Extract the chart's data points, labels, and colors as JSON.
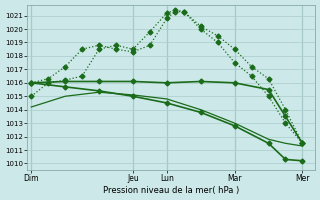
{
  "xlabel": "Pression niveau de la mer( hPa )",
  "bg_color": "#cce8e8",
  "grid_color": "#b0d0d0",
  "line_color": "#1a6b1a",
  "ylim": [
    1009.5,
    1021.8
  ],
  "yticks": [
    1010,
    1011,
    1012,
    1013,
    1014,
    1015,
    1016,
    1017,
    1018,
    1019,
    1020,
    1021
  ],
  "day_labels": [
    "Dim",
    "",
    "Jeu",
    "Lun",
    "",
    "Mar",
    "",
    "Mer"
  ],
  "day_tick_labels": [
    "Dim",
    "Jeu",
    "Lun",
    "Mar",
    "Mer"
  ],
  "day_tick_pos": [
    0,
    12,
    16,
    24,
    32
  ],
  "xlim": [
    -0.5,
    33.5
  ],
  "series1_dotted": {
    "x": [
      0,
      2,
      4,
      6,
      8,
      10,
      12,
      14,
      16,
      17,
      18,
      20,
      22,
      24,
      26,
      28,
      30,
      32
    ],
    "y": [
      1015.0,
      1016.0,
      1016.2,
      1016.5,
      1018.5,
      1018.8,
      1018.5,
      1019.8,
      1021.2,
      1021.4,
      1021.3,
      1020.2,
      1019.5,
      1018.5,
      1017.2,
      1016.3,
      1014.0,
      1011.5
    ]
  },
  "series2_dotted": {
    "x": [
      0,
      2,
      4,
      6,
      8,
      10,
      12,
      14,
      16,
      17,
      18,
      20,
      22,
      24,
      26,
      28,
      30,
      32
    ],
    "y": [
      1016.0,
      1016.3,
      1017.2,
      1018.5,
      1018.8,
      1018.5,
      1018.3,
      1018.8,
      1020.8,
      1021.3,
      1021.3,
      1020.0,
      1019.0,
      1017.5,
      1016.5,
      1015.0,
      1013.0,
      1011.5
    ]
  },
  "series3_solid_flat": {
    "x": [
      0,
      4,
      8,
      12,
      16,
      20,
      24,
      28,
      30,
      32
    ],
    "y": [
      1016.0,
      1016.1,
      1016.1,
      1016.1,
      1016.0,
      1016.1,
      1016.0,
      1015.5,
      1013.5,
      1011.5
    ]
  },
  "series4_solid_decline": {
    "x": [
      0,
      4,
      8,
      12,
      16,
      20,
      24,
      28,
      30,
      32
    ],
    "y": [
      1016.0,
      1015.7,
      1015.4,
      1015.0,
      1014.5,
      1013.8,
      1012.8,
      1011.5,
      1010.3,
      1010.2
    ]
  },
  "series5_solid_steeper": {
    "x": [
      0,
      4,
      8,
      12,
      16,
      20,
      24,
      28,
      30,
      32
    ],
    "y": [
      1014.2,
      1015.0,
      1015.3,
      1015.1,
      1014.8,
      1014.0,
      1013.0,
      1011.8,
      1011.5,
      1011.3
    ]
  }
}
